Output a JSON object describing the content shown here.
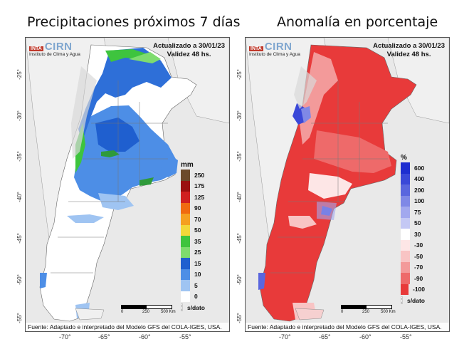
{
  "left": {
    "title": "Precipitaciones próximos 7 días",
    "updated": "Actualizado a 30/01/23",
    "validity": "Validez 48 hs.",
    "unit": "mm",
    "legend": [
      {
        "label": "250",
        "color": "#6b4a2a"
      },
      {
        "label": "175",
        "color": "#9a1010"
      },
      {
        "label": "125",
        "color": "#d02020"
      },
      {
        "label": "90",
        "color": "#f06a10"
      },
      {
        "label": "70",
        "color": "#f5a020"
      },
      {
        "label": "50",
        "color": "#f2d83a"
      },
      {
        "label": "35",
        "color": "#3ec43e"
      },
      {
        "label": "25",
        "color": "#7edc6e"
      },
      {
        "label": "15",
        "color": "#1f5fcf"
      },
      {
        "label": "10",
        "color": "#4d8ee6"
      },
      {
        "label": "5",
        "color": "#9fc4f2"
      },
      {
        "label": "0",
        "color": "#ffffff"
      },
      {
        "label": "s/dato",
        "color": "hatch"
      }
    ]
  },
  "right": {
    "title": "Anomalía en porcentaje",
    "updated": "Actualizado a 30/01/23",
    "validity": "Validez 48 hs.",
    "unit": "%",
    "legend": [
      {
        "label": "600",
        "color": "#1e2ed0"
      },
      {
        "label": "400",
        "color": "#3a48d8"
      },
      {
        "label": "200",
        "color": "#5a66de"
      },
      {
        "label": "100",
        "color": "#7f88e6"
      },
      {
        "label": "75",
        "color": "#a2a8ee"
      },
      {
        "label": "50",
        "color": "#c4c8f4"
      },
      {
        "label": "30",
        "color": "#ffffff"
      },
      {
        "label": "-30",
        "color": "#fde6e6"
      },
      {
        "label": "-50",
        "color": "#f8c4c4"
      },
      {
        "label": "-70",
        "color": "#f39a9a"
      },
      {
        "label": "-90",
        "color": "#ee6a6a"
      },
      {
        "label": "-100",
        "color": "#e83a3a"
      },
      {
        "label": "s/dato",
        "color": "hatch"
      }
    ]
  },
  "logo": {
    "badge": "INTA",
    "name": "CIRN",
    "institute": "Instituto de Clima y Agua"
  },
  "source": "Fuente: Adaptado e interpretado del Modelo GFS del COLA-IGES, USA.",
  "scale": {
    "zero": "0",
    "mid": "250",
    "end": "500 Km"
  },
  "lat_ticks": [
    "-25°",
    "-30°",
    "-35°",
    "-40°",
    "-45°",
    "-50°",
    "-55°"
  ],
  "lon_ticks": [
    "-70°",
    "-65°",
    "-60°",
    "-55°"
  ]
}
